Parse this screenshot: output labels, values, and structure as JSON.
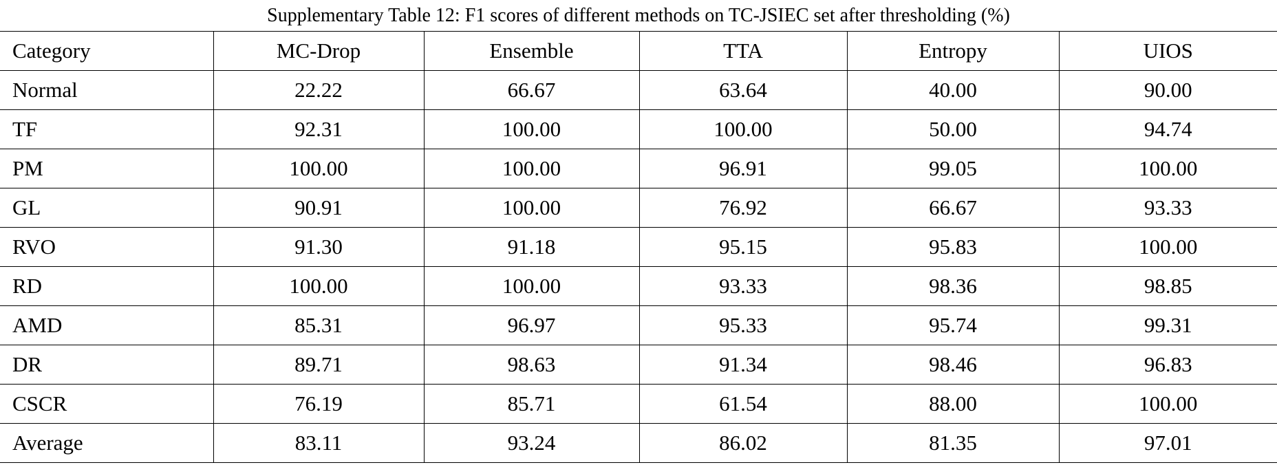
{
  "title": "Supplementary Table 12: F1 scores of different methods on TC-JSIEC set after thresholding (%)",
  "table": {
    "header": [
      "Category",
      "MC-Drop",
      "Ensemble",
      "TTA",
      "Entropy",
      "UIOS"
    ],
    "rows": [
      [
        "Normal",
        "22.22",
        "66.67",
        "63.64",
        "40.00",
        "90.00"
      ],
      [
        "TF",
        "92.31",
        "100.00",
        "100.00",
        "50.00",
        "94.74"
      ],
      [
        "PM",
        "100.00",
        "100.00",
        "96.91",
        "99.05",
        "100.00"
      ],
      [
        "GL",
        "90.91",
        "100.00",
        "76.92",
        "66.67",
        "93.33"
      ],
      [
        "RVO",
        "91.30",
        "91.18",
        "95.15",
        "95.83",
        "100.00"
      ],
      [
        "RD",
        "100.00",
        "100.00",
        "93.33",
        "98.36",
        "98.85"
      ],
      [
        "AMD",
        "85.31",
        "96.97",
        "95.33",
        "95.74",
        "99.31"
      ],
      [
        "DR",
        "89.71",
        "98.63",
        "91.34",
        "98.46",
        "96.83"
      ],
      [
        "CSCR",
        "76.19",
        "85.71",
        "61.54",
        "88.00",
        "100.00"
      ],
      [
        "Average",
        "83.11",
        "93.24",
        "86.02",
        "81.35",
        "97.01"
      ]
    ]
  }
}
